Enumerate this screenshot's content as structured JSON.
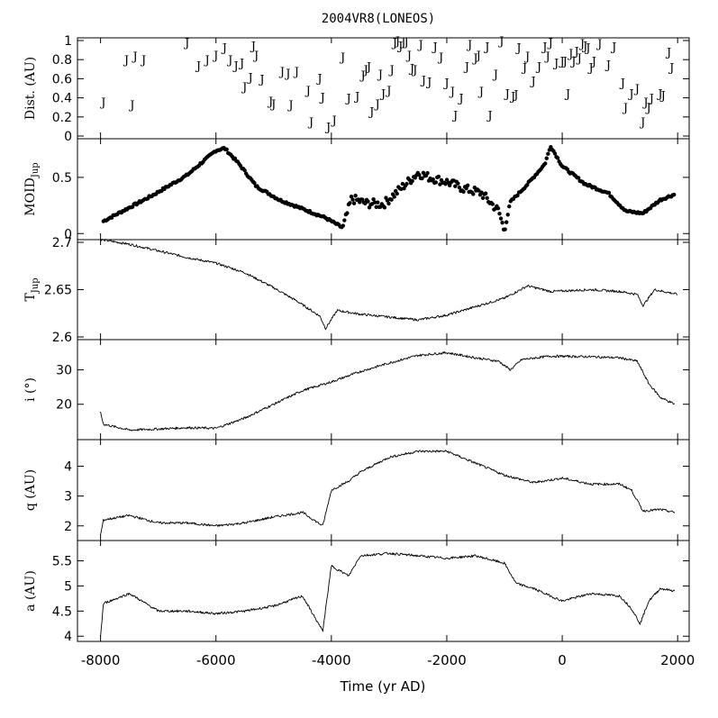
{
  "chart_data": {
    "title": "2004VR8(LONEOS)",
    "xlabel": "Time (yr AD)",
    "xlim": [
      -8400,
      2200
    ],
    "xticks": [
      -8000,
      -6000,
      -4000,
      -2000,
      0,
      2000
    ],
    "xtick_labels": [
      "-8000",
      "-6000",
      "-4000",
      "-2000",
      "0",
      "2000"
    ],
    "panels": [
      {
        "id": "dist",
        "type": "scatter",
        "marker": "J",
        "ylabel": "Dist. (AU)",
        "ylabel_sub": "",
        "ylim": [
          0,
          1
        ],
        "yticks": [
          0,
          0.2,
          0.4,
          0.6,
          0.8,
          1
        ],
        "ytick_labels": [
          "0",
          "0.2",
          "0.4",
          "0.6",
          "0.8",
          "1"
        ],
        "points": [
          [
            -7950,
            0.36
          ],
          [
            -7550,
            0.8
          ],
          [
            -7400,
            0.84
          ],
          [
            -7250,
            0.8
          ],
          [
            -7450,
            0.33
          ],
          [
            -6500,
            0.98
          ],
          [
            -6300,
            0.74
          ],
          [
            -6150,
            0.8
          ],
          [
            -6000,
            0.85
          ],
          [
            -5850,
            0.93
          ],
          [
            -5750,
            0.8
          ],
          [
            -5650,
            0.74
          ],
          [
            -5550,
            0.77
          ],
          [
            -5500,
            0.52
          ],
          [
            -5400,
            0.62
          ],
          [
            -5350,
            0.95
          ],
          [
            -5300,
            0.85
          ],
          [
            -5200,
            0.6
          ],
          [
            -5050,
            0.37
          ],
          [
            -5000,
            0.34
          ],
          [
            -4850,
            0.68
          ],
          [
            -4750,
            0.66
          ],
          [
            -4700,
            0.33
          ],
          [
            -4600,
            0.68
          ],
          [
            -4400,
            0.48
          ],
          [
            -4350,
            0.15
          ],
          [
            -4200,
            0.61
          ],
          [
            -4150,
            0.41
          ],
          [
            -4050,
            0.1
          ],
          [
            -3950,
            0.17
          ],
          [
            -3800,
            0.83
          ],
          [
            -3700,
            0.4
          ],
          [
            -3550,
            0.42
          ],
          [
            -3450,
            0.64
          ],
          [
            -3400,
            0.7
          ],
          [
            -3350,
            0.73
          ],
          [
            -3300,
            0.26
          ],
          [
            -3200,
            0.34
          ],
          [
            -3150,
            0.65
          ],
          [
            -3100,
            0.45
          ],
          [
            -3000,
            0.48
          ],
          [
            -2950,
            0.7
          ],
          [
            -2900,
            0.98
          ],
          [
            -2850,
            1.0
          ],
          [
            -2800,
            0.95
          ],
          [
            -2750,
            0.99
          ],
          [
            -2700,
            0.99
          ],
          [
            -2650,
            0.85
          ],
          [
            -2600,
            0.71
          ],
          [
            -2550,
            0.7
          ],
          [
            -2450,
            0.96
          ],
          [
            -2400,
            0.59
          ],
          [
            -2300,
            0.57
          ],
          [
            -2200,
            0.94
          ],
          [
            -2100,
            0.83
          ],
          [
            -2000,
            0.56
          ],
          [
            -1900,
            0.47
          ],
          [
            -1850,
            0.22
          ],
          [
            -1750,
            0.4
          ],
          [
            -1650,
            0.73
          ],
          [
            -1600,
            0.96
          ],
          [
            -1500,
            0.82
          ],
          [
            -1450,
            0.85
          ],
          [
            -1400,
            0.47
          ],
          [
            -1300,
            0.94
          ],
          [
            -1250,
            0.22
          ],
          [
            -1150,
            0.65
          ],
          [
            -1050,
            1.0
          ],
          [
            -950,
            0.45
          ],
          [
            -850,
            0.42
          ],
          [
            -800,
            0.44
          ],
          [
            -750,
            0.93
          ],
          [
            -650,
            0.72
          ],
          [
            -600,
            0.84
          ],
          [
            -500,
            0.58
          ],
          [
            -400,
            0.73
          ],
          [
            -300,
            0.94
          ],
          [
            -250,
            0.84
          ],
          [
            -200,
            0.98
          ],
          [
            -100,
            0.77
          ],
          [
            0,
            0.79
          ],
          [
            50,
            0.79
          ],
          [
            100,
            0.45
          ],
          [
            150,
            0.87
          ],
          [
            200,
            0.79
          ],
          [
            250,
            0.89
          ],
          [
            300,
            0.82
          ],
          [
            350,
            0.97
          ],
          [
            400,
            0.95
          ],
          [
            450,
            0.93
          ],
          [
            500,
            0.72
          ],
          [
            550,
            0.79
          ],
          [
            650,
            0.97
          ],
          [
            800,
            0.75
          ],
          [
            900,
            0.94
          ],
          [
            1050,
            0.56
          ],
          [
            1100,
            0.3
          ],
          [
            1200,
            0.45
          ],
          [
            1300,
            0.5
          ],
          [
            1400,
            0.15
          ],
          [
            1450,
            0.36
          ],
          [
            1500,
            0.3
          ],
          [
            1550,
            0.4
          ],
          [
            1700,
            0.45
          ],
          [
            1750,
            0.43
          ],
          [
            1900,
            0.72
          ],
          [
            1850,
            0.88
          ]
        ]
      },
      {
        "id": "moid",
        "type": "scatter",
        "marker": "dot",
        "ylabel": "MOID",
        "ylabel_sub": "Jup",
        "ylim": [
          -0.03,
          0.82
        ],
        "yticks": [
          0,
          0.5
        ],
        "ytick_labels": [
          "0",
          "0.5"
        ],
        "series": [
          {
            "x": -7950,
            "y": 0.11
          },
          {
            "x": -7100,
            "y": 0.34
          },
          {
            "x": -6500,
            "y": 0.52
          },
          {
            "x": -6000,
            "y": 0.74
          },
          {
            "x": -5850,
            "y": 0.76
          },
          {
            "x": -5600,
            "y": 0.62
          },
          {
            "x": -5300,
            "y": 0.42
          },
          {
            "x": -4900,
            "y": 0.3
          },
          {
            "x": -4500,
            "y": 0.22
          },
          {
            "x": -4100,
            "y": 0.14
          },
          {
            "x": -3800,
            "y": 0.05
          },
          {
            "x": -3650,
            "y": 0.31
          },
          {
            "x": -3400,
            "y": 0.27
          },
          {
            "x": -3100,
            "y": 0.26
          },
          {
            "x": -2800,
            "y": 0.4
          },
          {
            "x": -2500,
            "y": 0.54
          },
          {
            "x": -2300,
            "y": 0.5
          },
          {
            "x": -2000,
            "y": 0.46
          },
          {
            "x": -1700,
            "y": 0.4
          },
          {
            "x": -1400,
            "y": 0.36
          },
          {
            "x": -1100,
            "y": 0.2
          },
          {
            "x": -1000,
            "y": 0.02
          },
          {
            "x": -900,
            "y": 0.28
          },
          {
            "x": -600,
            "y": 0.44
          },
          {
            "x": -300,
            "y": 0.62
          },
          {
            "x": -200,
            "y": 0.78
          },
          {
            "x": 0,
            "y": 0.6
          },
          {
            "x": 400,
            "y": 0.44
          },
          {
            "x": 800,
            "y": 0.36
          },
          {
            "x": 1100,
            "y": 0.2
          },
          {
            "x": 1400,
            "y": 0.18
          },
          {
            "x": 1700,
            "y": 0.3
          },
          {
            "x": 1950,
            "y": 0.35
          }
        ]
      },
      {
        "id": "tjup",
        "type": "line",
        "ylabel": "T",
        "ylabel_sub": "Jup",
        "ylim": [
          2.6,
          2.7
        ],
        "yticks": [
          2.6,
          2.65,
          2.7
        ],
        "ytick_labels": [
          "2.6",
          "2.65",
          "2.7"
        ],
        "series": [
          {
            "x": -8000,
            "y": 2.703
          },
          {
            "x": -7500,
            "y": 2.698
          },
          {
            "x": -7000,
            "y": 2.691
          },
          {
            "x": -6500,
            "y": 2.684
          },
          {
            "x": -6000,
            "y": 2.678
          },
          {
            "x": -5500,
            "y": 2.668
          },
          {
            "x": -5000,
            "y": 2.652
          },
          {
            "x": -4600,
            "y": 2.638
          },
          {
            "x": -4200,
            "y": 2.622
          },
          {
            "x": -4100,
            "y": 2.609
          },
          {
            "x": -3900,
            "y": 2.628
          },
          {
            "x": -3500,
            "y": 2.624
          },
          {
            "x": -3000,
            "y": 2.621
          },
          {
            "x": -2500,
            "y": 2.618
          },
          {
            "x": -2000,
            "y": 2.623
          },
          {
            "x": -1500,
            "y": 2.632
          },
          {
            "x": -1000,
            "y": 2.641
          },
          {
            "x": -600,
            "y": 2.654
          },
          {
            "x": -200,
            "y": 2.648
          },
          {
            "x": 500,
            "y": 2.65
          },
          {
            "x": 1000,
            "y": 2.648
          },
          {
            "x": 1300,
            "y": 2.645
          },
          {
            "x": 1400,
            "y": 2.633
          },
          {
            "x": 1600,
            "y": 2.65
          },
          {
            "x": 2000,
            "y": 2.645
          }
        ]
      },
      {
        "id": "incl",
        "type": "line",
        "ylabel": "i (°)",
        "ylabel_sub": "",
        "ylim": [
          10.5,
          38
        ],
        "yticks": [
          20,
          30
        ],
        "ytick_labels": [
          "20",
          "30"
        ],
        "series": [
          {
            "x": -8000,
            "y": 17.5
          },
          {
            "x": -7950,
            "y": 14.2
          },
          {
            "x": -7500,
            "y": 12.5
          },
          {
            "x": -7000,
            "y": 12.8
          },
          {
            "x": -6500,
            "y": 13.2
          },
          {
            "x": -6000,
            "y": 13.0
          },
          {
            "x": -5500,
            "y": 16.0
          },
          {
            "x": -5000,
            "y": 20.0
          },
          {
            "x": -4500,
            "y": 24.0
          },
          {
            "x": -4000,
            "y": 26.5
          },
          {
            "x": -3500,
            "y": 29.5
          },
          {
            "x": -3000,
            "y": 32.0
          },
          {
            "x": -2500,
            "y": 34.2
          },
          {
            "x": -2000,
            "y": 35.0
          },
          {
            "x": -1500,
            "y": 33.5
          },
          {
            "x": -1100,
            "y": 32.5
          },
          {
            "x": -900,
            "y": 30.0
          },
          {
            "x": -700,
            "y": 33.0
          },
          {
            "x": -200,
            "y": 34.0
          },
          {
            "x": 500,
            "y": 33.8
          },
          {
            "x": 1000,
            "y": 33.5
          },
          {
            "x": 1300,
            "y": 32.5
          },
          {
            "x": 1500,
            "y": 26.0
          },
          {
            "x": 1700,
            "y": 22.0
          },
          {
            "x": 1950,
            "y": 20.0
          }
        ]
      },
      {
        "id": "q",
        "type": "line",
        "ylabel": "q (AU)",
        "ylabel_sub": "",
        "ylim": [
          1.6,
          4.8
        ],
        "yticks": [
          2,
          3,
          4
        ],
        "ytick_labels": [
          "2",
          "3",
          "4"
        ],
        "series": [
          {
            "x": -8000,
            "y": 1.7
          },
          {
            "x": -7950,
            "y": 2.2
          },
          {
            "x": -7500,
            "y": 2.35
          },
          {
            "x": -7000,
            "y": 2.1
          },
          {
            "x": -6500,
            "y": 2.1
          },
          {
            "x": -6000,
            "y": 2.0
          },
          {
            "x": -5500,
            "y": 2.1
          },
          {
            "x": -5000,
            "y": 2.3
          },
          {
            "x": -4500,
            "y": 2.45
          },
          {
            "x": -4150,
            "y": 2.0
          },
          {
            "x": -4000,
            "y": 3.2
          },
          {
            "x": -3700,
            "y": 3.5
          },
          {
            "x": -3500,
            "y": 3.8
          },
          {
            "x": -3000,
            "y": 4.3
          },
          {
            "x": -2500,
            "y": 4.5
          },
          {
            "x": -2000,
            "y": 4.5
          },
          {
            "x": -1500,
            "y": 4.1
          },
          {
            "x": -1000,
            "y": 3.7
          },
          {
            "x": -500,
            "y": 3.45
          },
          {
            "x": 0,
            "y": 3.6
          },
          {
            "x": 500,
            "y": 3.4
          },
          {
            "x": 1000,
            "y": 3.4
          },
          {
            "x": 1200,
            "y": 3.2
          },
          {
            "x": 1400,
            "y": 2.5
          },
          {
            "x": 1700,
            "y": 2.55
          },
          {
            "x": 1950,
            "y": 2.45
          }
        ]
      },
      {
        "id": "a",
        "type": "line",
        "ylabel": "a (AU)",
        "ylabel_sub": "",
        "ylim": [
          3.95,
          5.85
        ],
        "yticks": [
          4,
          4.5,
          5,
          5.5
        ],
        "ytick_labels": [
          "4",
          "4.5",
          "5",
          "5.5"
        ],
        "series": [
          {
            "x": -8000,
            "y": 4.0
          },
          {
            "x": -7950,
            "y": 4.65
          },
          {
            "x": -7500,
            "y": 4.85
          },
          {
            "x": -7000,
            "y": 4.5
          },
          {
            "x": -6500,
            "y": 4.5
          },
          {
            "x": -6000,
            "y": 4.45
          },
          {
            "x": -5500,
            "y": 4.5
          },
          {
            "x": -5000,
            "y": 4.6
          },
          {
            "x": -4500,
            "y": 4.8
          },
          {
            "x": -4150,
            "y": 4.1
          },
          {
            "x": -4000,
            "y": 5.4
          },
          {
            "x": -3700,
            "y": 5.2
          },
          {
            "x": -3500,
            "y": 5.6
          },
          {
            "x": -3000,
            "y": 5.65
          },
          {
            "x": -2500,
            "y": 5.6
          },
          {
            "x": -2000,
            "y": 5.55
          },
          {
            "x": -1500,
            "y": 5.6
          },
          {
            "x": -1000,
            "y": 5.45
          },
          {
            "x": -800,
            "y": 5.05
          },
          {
            "x": -500,
            "y": 4.95
          },
          {
            "x": 0,
            "y": 4.7
          },
          {
            "x": 500,
            "y": 4.85
          },
          {
            "x": 1000,
            "y": 4.8
          },
          {
            "x": 1200,
            "y": 4.55
          },
          {
            "x": 1350,
            "y": 4.25
          },
          {
            "x": 1500,
            "y": 4.7
          },
          {
            "x": 1700,
            "y": 4.95
          },
          {
            "x": 1950,
            "y": 4.9
          }
        ]
      }
    ]
  }
}
